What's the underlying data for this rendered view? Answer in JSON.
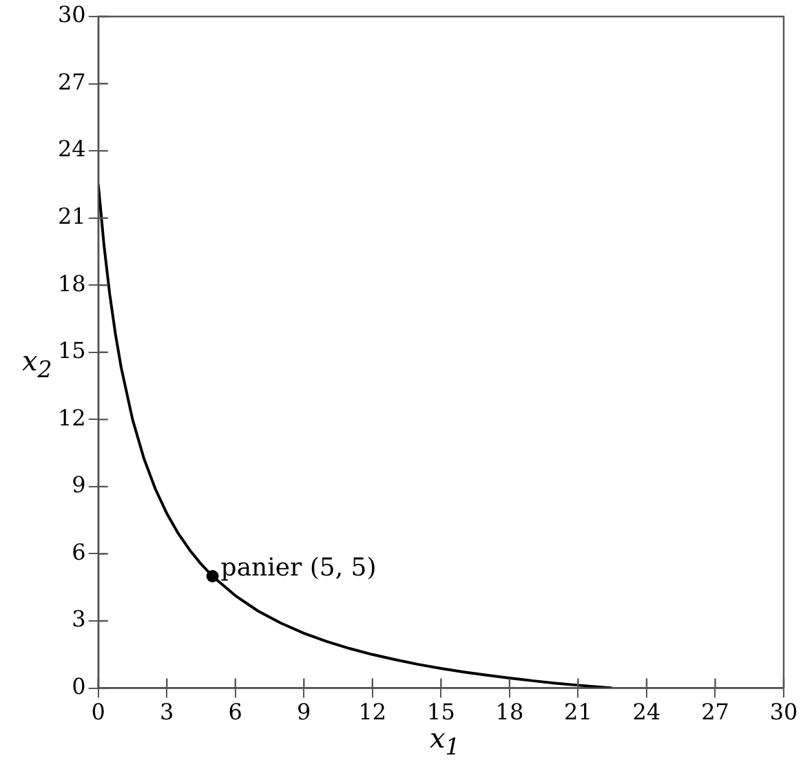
{
  "chart_data": {
    "type": "line",
    "xlabel": "x$_{1}$",
    "ylabel": "x$_{2}$",
    "xlim": [
      0,
      30
    ],
    "ylim": [
      0,
      30
    ],
    "xticks": [
      0,
      3,
      6,
      9,
      12,
      15,
      18,
      21,
      24,
      27,
      30
    ],
    "yticks": [
      0,
      3,
      6,
      9,
      12,
      15,
      18,
      21,
      24,
      27,
      30
    ],
    "grid": false,
    "legend": false,
    "marker": "none",
    "line_style": "solid",
    "series": [
      {
        "color": "#000000",
        "x": [
          0,
          0.25,
          0.5,
          0.75,
          1,
          1.5,
          2,
          2.5,
          3,
          3.5,
          4,
          4.5,
          5,
          6,
          7,
          8,
          9,
          10,
          11,
          12,
          13,
          14,
          15,
          16,
          17,
          18,
          19,
          20,
          21,
          22.5
        ],
        "values": [
          22.5,
          19.78,
          17.6,
          15.82,
          14.33,
          12,
          10.25,
          8.89,
          7.8,
          6.91,
          6.17,
          5.54,
          5,
          4.13,
          3.44,
          2.9,
          2.45,
          2.08,
          1.77,
          1.5,
          1.27,
          1.06,
          0.88,
          0.72,
          0.58,
          0.45,
          0.33,
          0.22,
          0.13,
          0
        ]
      },
      {
        "type": "scatter",
        "marker": "circle",
        "color": "#000000",
        "x": [
          5
        ],
        "values": [
          5
        ]
      }
    ],
    "annotations": [
      {
        "text": "panier (5, 5)",
        "x": 5,
        "y": 5
      }
    ]
  }
}
